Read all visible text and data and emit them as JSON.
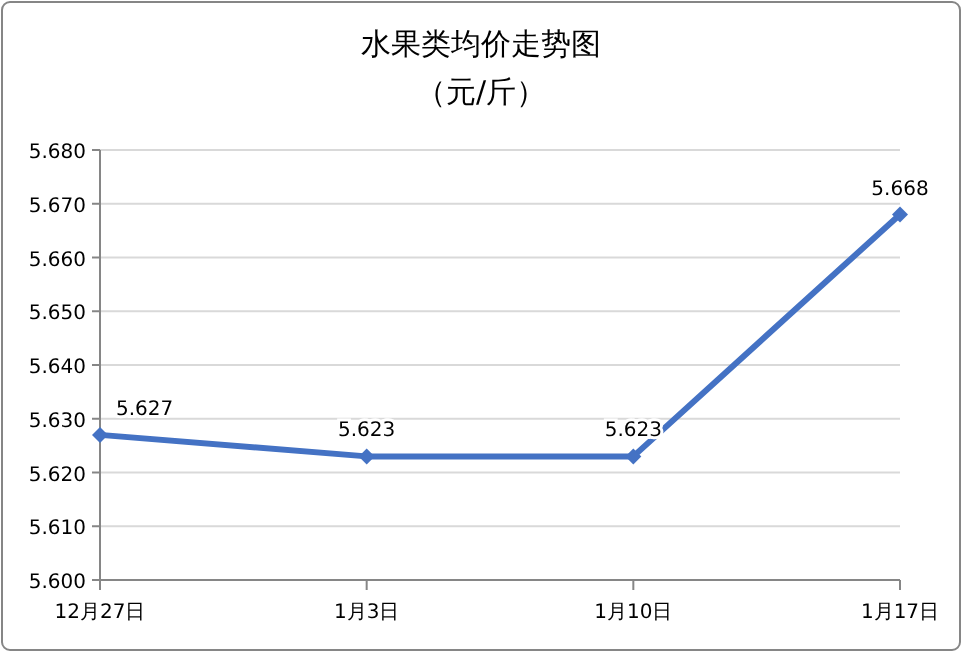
{
  "chart_data": {
    "type": "line",
    "title": "水果类均价走势图",
    "subtitle": "（元/斤）",
    "categories": [
      "12月27日",
      "1月3日",
      "1月10日",
      "1月17日"
    ],
    "values": [
      5.627,
      5.623,
      5.623,
      5.668
    ],
    "color": "#4472c4",
    "marker": "diamond",
    "line_style": "solid",
    "data_labels": true,
    "grid": "y",
    "ylim": [
      5.6,
      5.68
    ],
    "yticks": [
      {
        "value": 5.6,
        "label": "5.600"
      },
      {
        "value": 5.61,
        "label": "5.610"
      },
      {
        "value": 5.62,
        "label": "5.620"
      },
      {
        "value": 5.63,
        "label": "5.630"
      },
      {
        "value": 5.64,
        "label": "5.640"
      },
      {
        "value": 5.65,
        "label": "5.650"
      },
      {
        "value": 5.66,
        "label": "5.660"
      },
      {
        "value": 5.67,
        "label": "5.670"
      },
      {
        "value": 5.68,
        "label": "5.680"
      }
    ]
  }
}
